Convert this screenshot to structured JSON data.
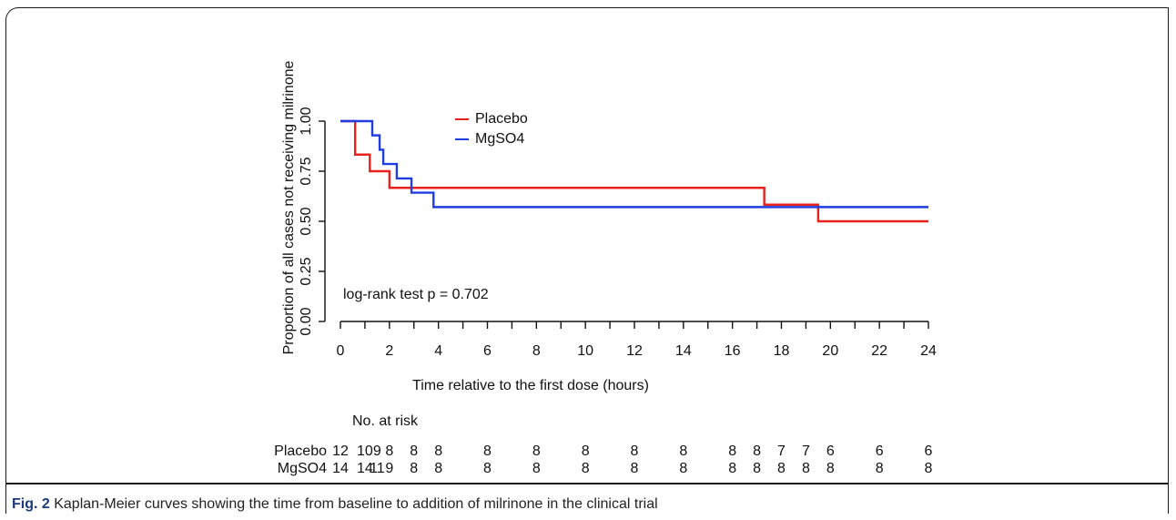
{
  "caption": {
    "label": "Fig. 2",
    "text": "Kaplan-Meier curves showing the time from baseline to addition of milrinone in the clinical trial"
  },
  "chart_data": {
    "type": "line",
    "xlabel": "Time relative to the first dose (hours)",
    "ylabel": "Proportion of all cases not receiving milrinone",
    "xlim": [
      0,
      24
    ],
    "ylim": [
      0,
      1
    ],
    "x_ticks": [
      "0",
      "2",
      "4",
      "6",
      "8",
      "10",
      "12",
      "14",
      "16",
      "18",
      "20",
      "22",
      "24"
    ],
    "y_ticks": [
      "0.00",
      "0.25",
      "0.50",
      "0.75",
      "1.00"
    ],
    "annotation": "log-rank test p = 0.702",
    "legend_position": "top-center",
    "series": [
      {
        "name": "Placebo",
        "color": "#e8211d",
        "steps": [
          [
            0,
            1.0
          ],
          [
            0.6,
            0.833
          ],
          [
            1.2,
            0.75
          ],
          [
            2.0,
            0.667
          ],
          [
            17.3,
            0.583
          ],
          [
            19.5,
            0.5
          ],
          [
            24,
            0.5
          ]
        ]
      },
      {
        "name": "MgSO4",
        "color": "#1f3de0",
        "steps": [
          [
            0,
            1.0
          ],
          [
            1.3,
            0.929
          ],
          [
            1.6,
            0.857
          ],
          [
            1.75,
            0.786
          ],
          [
            2.3,
            0.714
          ],
          [
            2.9,
            0.643
          ],
          [
            3.8,
            0.571
          ],
          [
            24,
            0.571
          ]
        ]
      }
    ],
    "risk_table": {
      "title": "No. at risk",
      "positions": [
        0,
        1,
        1.5,
        2,
        3,
        4,
        6,
        8,
        10,
        12,
        14,
        16,
        17,
        18,
        19,
        20,
        22,
        24
      ],
      "rows": [
        {
          "name": "Placebo",
          "values": [
            "12",
            "10",
            "9",
            "8",
            "8",
            "8",
            "8",
            "8",
            "8",
            "8",
            "8",
            "8",
            "8",
            "7",
            "7",
            "6",
            "6",
            "6"
          ]
        },
        {
          "name": "MgSO4",
          "values": [
            "14",
            "14",
            "11",
            "9",
            "8",
            "8",
            "8",
            "8",
            "8",
            "8",
            "8",
            "8",
            "8",
            "8",
            "8",
            "8",
            "8",
            "8"
          ]
        }
      ]
    }
  }
}
